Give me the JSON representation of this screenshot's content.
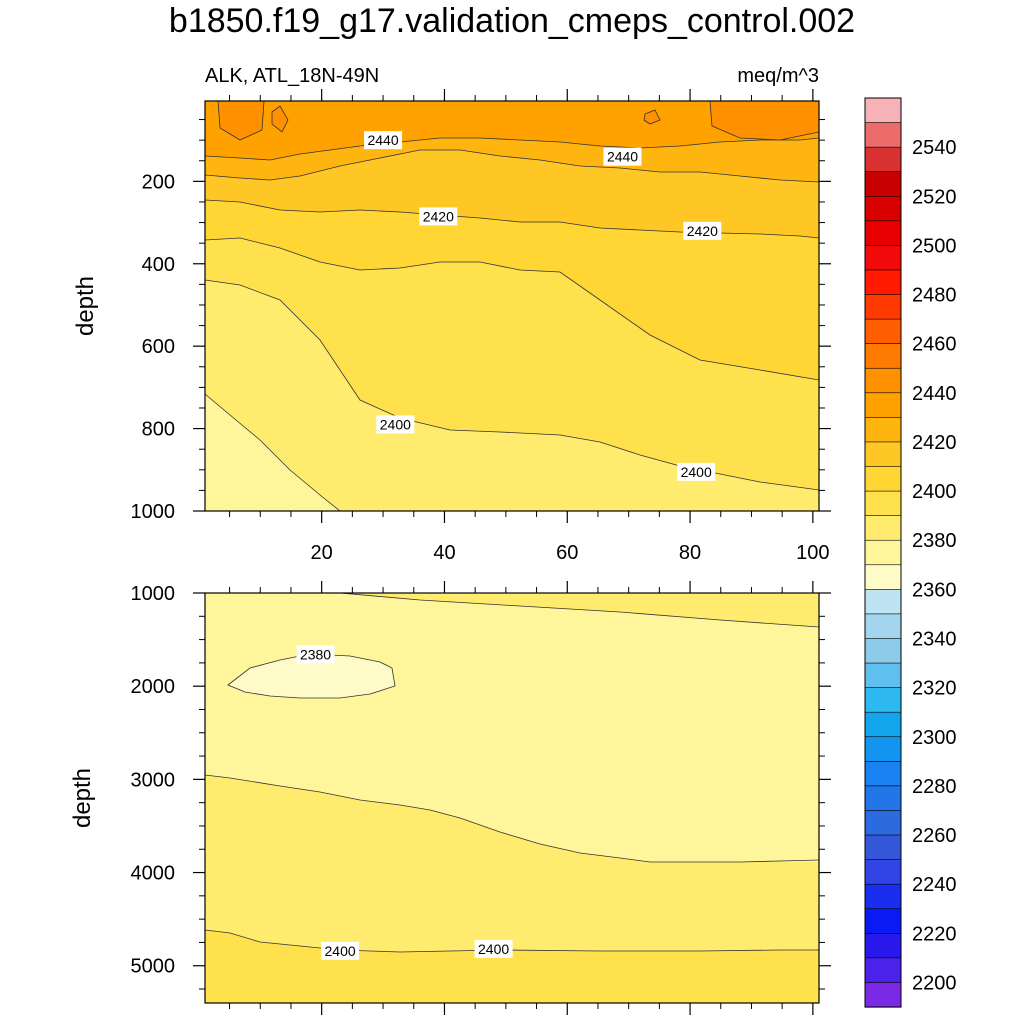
{
  "chart_data": {
    "type": "contour",
    "title": "b1850.f19_g17.validation_cmeps_control.002",
    "left_subtitle": "ALK, ATL_18N-49N",
    "right_subtitle": "meq/m^3",
    "panels": [
      {
        "name": "upper",
        "ylabel": "depth",
        "xlim": [
          1,
          101
        ],
        "ylim": [
          1000,
          5
        ],
        "x_ticks": [
          20,
          40,
          60,
          80,
          100
        ],
        "y_ticks": [
          200,
          400,
          600,
          800,
          1000
        ],
        "contour_labels": [
          {
            "text": "2440",
            "x": 30,
            "y": 100
          },
          {
            "text": "2440",
            "x": 69,
            "y": 140
          },
          {
            "text": "2420",
            "x": 39,
            "y": 285
          },
          {
            "text": "2420",
            "x": 82,
            "y": 320
          },
          {
            "text": "2400",
            "x": 32,
            "y": 790
          },
          {
            "text": "2400",
            "x": 81,
            "y": 905
          }
        ]
      },
      {
        "name": "lower",
        "ylabel": "depth",
        "xlim": [
          1,
          101
        ],
        "ylim": [
          5400,
          1000
        ],
        "x_ticks": [
          20,
          40,
          60,
          80,
          100
        ],
        "y_ticks": [
          1000,
          2000,
          3000,
          4000,
          5000
        ],
        "contour_labels": [
          {
            "text": "2380",
            "x": 19,
            "y": 1660
          },
          {
            "text": "2400",
            "x": 23,
            "y": 4840
          },
          {
            "text": "2400",
            "x": 48,
            "y": 4820
          }
        ]
      }
    ],
    "colorbar": {
      "labels": [
        "2540",
        "2520",
        "2500",
        "2480",
        "2460",
        "2440",
        "2420",
        "2400",
        "2380",
        "2360",
        "2340",
        "2320",
        "2300",
        "2280",
        "2260",
        "2240",
        "2220",
        "2200"
      ],
      "colors": [
        "#f7b2b7",
        "#ec6b6b",
        "#d93030",
        "#c80000",
        "#d90000",
        "#e60000",
        "#f20a0a",
        "#ff1a00",
        "#ff3a00",
        "#ff5e00",
        "#ff7a00",
        "#ff9000",
        "#ffa200",
        "#ffb510",
        "#ffc726",
        "#ffd633",
        "#ffe14d",
        "#ffeb6e",
        "#fff59a",
        "#fffbc8",
        "#bee3f2",
        "#a3d6ee",
        "#8ccbea",
        "#5fc0ef",
        "#2db8f0",
        "#12a5ec",
        "#1195f0",
        "#1a82f0",
        "#2276e8",
        "#2c6ae0",
        "#3556d6",
        "#3344e6",
        "#1a2ef0",
        "#0a1af5",
        "#2818ec",
        "#4a22ea",
        "#7a2ae6"
      ]
    }
  }
}
